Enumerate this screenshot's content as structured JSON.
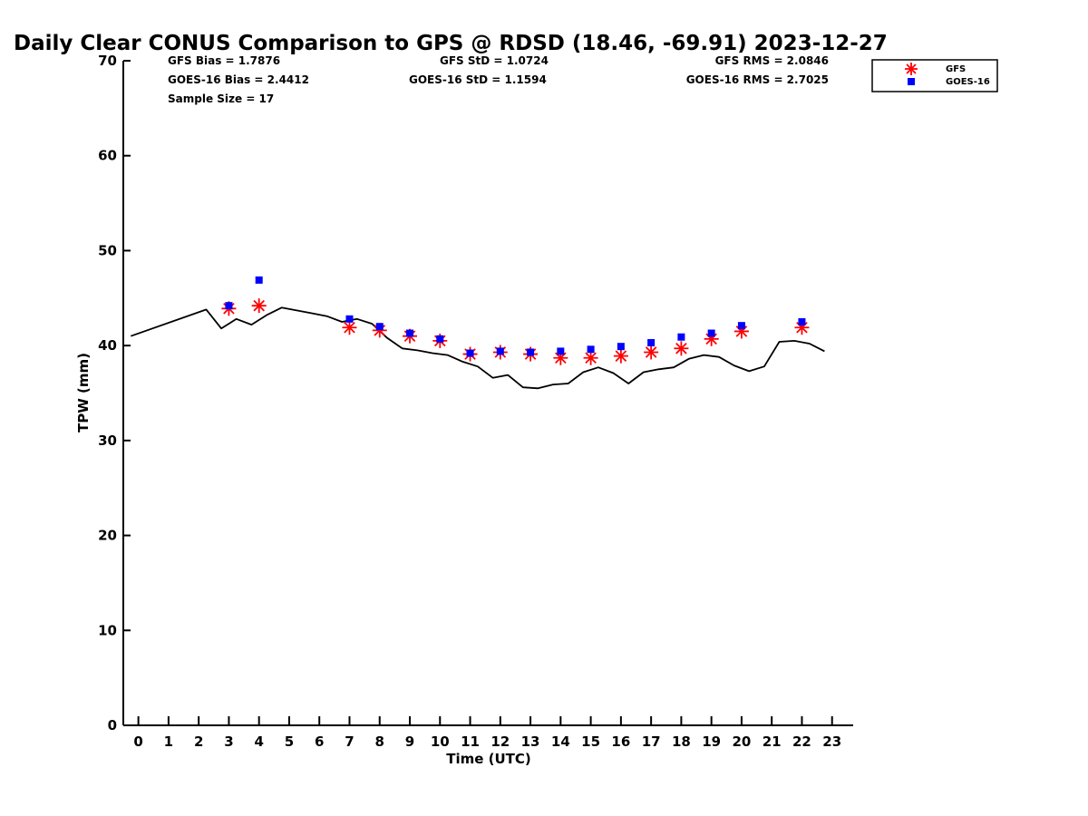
{
  "chart_data": {
    "type": "line",
    "title": "Daily Clear CONUS Comparison to GPS @ RDSD (18.46, -69.91) 2023-12-27",
    "xlabel": "Time (UTC)",
    "ylabel": "TPW (mm)",
    "xlim": [
      -0.5,
      23.7
    ],
    "ylim": [
      0,
      70
    ],
    "xticks": [
      "0",
      "1",
      "2",
      "3",
      "4",
      "5",
      "6",
      "7",
      "8",
      "9",
      "10",
      "11",
      "12",
      "13",
      "14",
      "15",
      "16",
      "17",
      "18",
      "19",
      "20",
      "21",
      "22",
      "23"
    ],
    "yticks": [
      "0",
      "10",
      "20",
      "30",
      "40",
      "50",
      "60",
      "70"
    ],
    "grid": false,
    "legend_position": "top-right",
    "stats": {
      "gfs_bias": "GFS Bias = 1.7876",
      "goes_bias": "GOES-16 Bias = 2.4412",
      "sample_size": "Sample Size = 17",
      "gfs_std": "GFS StD = 1.0724",
      "goes_std": "GOES-16 StD = 1.1594",
      "gfs_rms": "GFS RMS = 2.0846",
      "goes_rms": "GOES-16 RMS = 2.7025"
    },
    "gps_line": {
      "color": "#000000",
      "x": [
        -0.25,
        2.25,
        2.75,
        3.25,
        3.75,
        4.25,
        4.75,
        5.25,
        5.75,
        6.25,
        6.75,
        7.25,
        7.75,
        8.25,
        8.75,
        9.25,
        9.75,
        10.25,
        10.75,
        11.25,
        11.75,
        12.25,
        12.75,
        13.25,
        13.75,
        14.25,
        14.75,
        15.25,
        15.75,
        16.25,
        16.75,
        17.25,
        17.75,
        18.25,
        18.75,
        19.25,
        19.75,
        20.25,
        20.75,
        21.25,
        21.75,
        22.25,
        22.75
      ],
      "y": [
        41.0,
        43.8,
        41.8,
        42.8,
        42.2,
        43.2,
        44.0,
        43.7,
        43.4,
        43.1,
        42.5,
        42.8,
        42.3,
        40.8,
        39.7,
        39.5,
        39.2,
        39.0,
        38.3,
        37.8,
        36.6,
        36.9,
        35.6,
        35.5,
        35.9,
        36.0,
        37.2,
        37.7,
        37.1,
        36.0,
        37.2,
        37.5,
        37.7,
        38.6,
        39.0,
        38.8,
        37.9,
        37.3,
        37.8,
        40.4,
        40.5,
        40.2,
        39.4
      ]
    },
    "series": [
      {
        "name": "GFS",
        "color": "#ff0000",
        "marker": "asterisk",
        "x": [
          3,
          4,
          7,
          8,
          9,
          10,
          11,
          12,
          13,
          14,
          15,
          16,
          17,
          18,
          19,
          20,
          22
        ],
        "y": [
          43.9,
          44.2,
          41.9,
          41.6,
          41.0,
          40.5,
          39.1,
          39.3,
          39.1,
          38.7,
          38.7,
          38.9,
          39.3,
          39.7,
          40.7,
          41.5,
          41.9
        ]
      },
      {
        "name": "GOES-16",
        "color": "#0000ff",
        "marker": "square",
        "x": [
          3,
          4,
          7,
          8,
          9,
          10,
          11,
          12,
          13,
          14,
          15,
          16,
          17,
          18,
          19,
          20,
          22
        ],
        "y": [
          44.2,
          46.9,
          42.8,
          42.0,
          41.3,
          40.7,
          39.2,
          39.4,
          39.3,
          39.4,
          39.6,
          39.9,
          40.3,
          40.9,
          41.3,
          42.1,
          42.5
        ]
      }
    ]
  }
}
